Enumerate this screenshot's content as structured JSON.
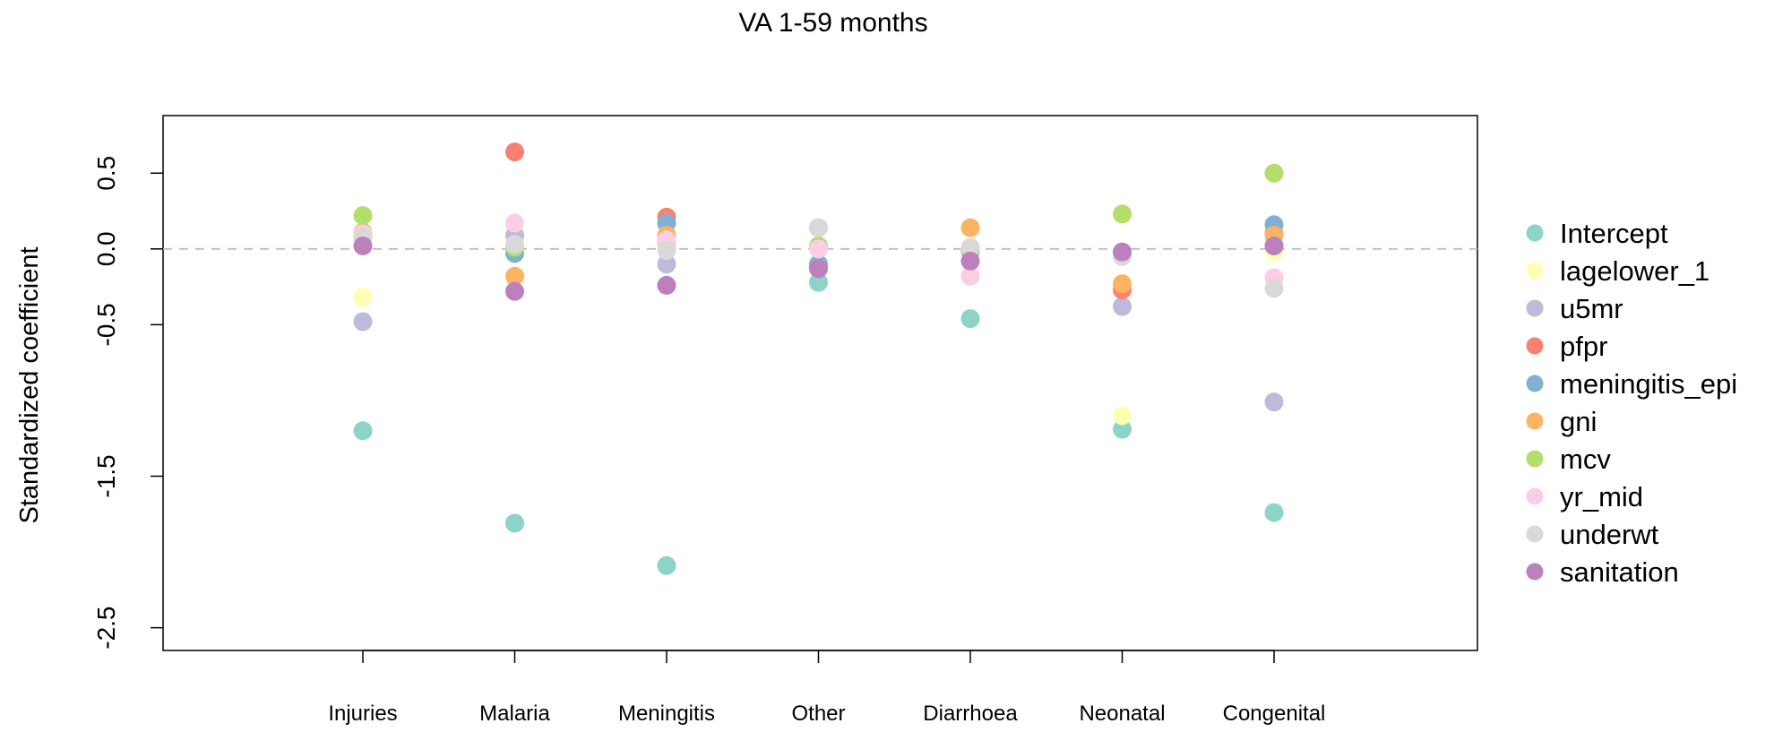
{
  "chart_data": {
    "type": "scatter",
    "title": "VA 1-59 months",
    "xlabel": "",
    "ylabel": "Standardized coefficient",
    "categories": [
      "Injuries",
      "Malaria",
      "Meningitis",
      "Other",
      "Diarrhoea",
      "Neonatal",
      "Congenital"
    ],
    "yticks": [
      "0.5",
      "0.0",
      "-0.5",
      "-1.5",
      "-2.5"
    ],
    "ylim": [
      -2.65,
      0.88
    ],
    "reference_line": 0,
    "grid": false,
    "legend_position": "right",
    "series": [
      {
        "name": "Intercept",
        "color": "#8DD3C7",
        "values": [
          -1.2,
          -1.81,
          -2.09,
          -0.22,
          -0.46,
          -1.19,
          -1.74
        ]
      },
      {
        "name": "lagelower_1",
        "color": "#FFFFB3",
        "values": [
          -0.32,
          0.0,
          0.01,
          0.14,
          0.0,
          -1.1,
          -0.02
        ]
      },
      {
        "name": "u5mr",
        "color": "#BEBADA",
        "values": [
          -0.48,
          0.09,
          -0.1,
          0.01,
          -0.02,
          -0.38,
          -1.01
        ]
      },
      {
        "name": "pfpr",
        "color": "#FB8072",
        "values": [
          0.1,
          0.64,
          0.21,
          -0.11,
          0.0,
          -0.27,
          0.1
        ]
      },
      {
        "name": "meningitis_epi",
        "color": "#80B1D3",
        "values": [
          0.08,
          -0.03,
          0.17,
          -0.1,
          0.0,
          -0.03,
          0.16
        ]
      },
      {
        "name": "gni",
        "color": "#FDB462",
        "values": [
          0.11,
          -0.18,
          0.09,
          0.14,
          0.14,
          -0.23,
          0.09
        ]
      },
      {
        "name": "mcv",
        "color": "#B3DE69",
        "values": [
          0.22,
          0.01,
          0.04,
          0.02,
          0.0,
          0.23,
          0.5
        ]
      },
      {
        "name": "yr_mid",
        "color": "#FCCDE5",
        "values": [
          0.1,
          0.17,
          0.06,
          0.0,
          -0.18,
          -0.03,
          -0.19
        ]
      },
      {
        "name": "underwt",
        "color": "#D9D9D9",
        "values": [
          0.08,
          0.03,
          -0.01,
          0.14,
          0.01,
          -0.05,
          -0.26
        ]
      },
      {
        "name": "sanitation",
        "color": "#BC80BD",
        "values": [
          0.02,
          -0.28,
          -0.24,
          -0.13,
          -0.08,
          -0.02,
          0.02
        ]
      }
    ]
  }
}
